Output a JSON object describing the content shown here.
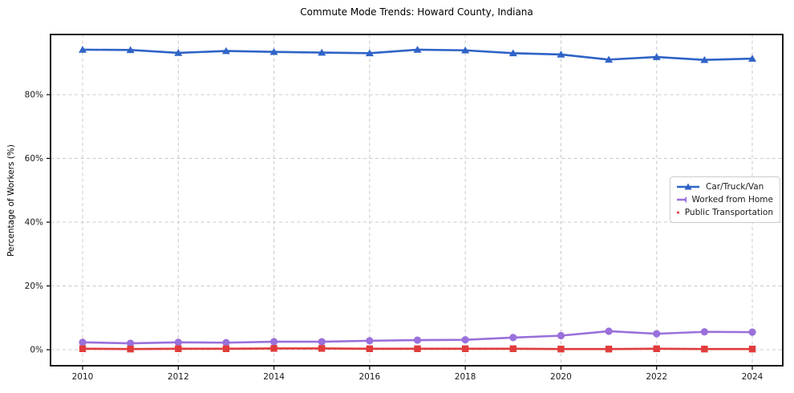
{
  "chart_data": {
    "type": "line",
    "title": "Commute Mode Trends: Howard County, Indiana",
    "xlabel": "",
    "ylabel": "Percentage of Workers (%)",
    "x": [
      2010,
      2011,
      2012,
      2013,
      2014,
      2015,
      2016,
      2017,
      2018,
      2019,
      2020,
      2021,
      2022,
      2023,
      2024
    ],
    "xtick_labels": [
      "2010",
      "2012",
      "2014",
      "2016",
      "2018",
      "2020",
      "2022",
      "2024"
    ],
    "xticks": [
      2010,
      2012,
      2014,
      2016,
      2018,
      2020,
      2022,
      2024
    ],
    "yticks": [
      0,
      20,
      40,
      60,
      80
    ],
    "ytick_labels": [
      "0%",
      "20%",
      "40%",
      "60%",
      "80%"
    ],
    "ylim": [
      -5,
      99
    ],
    "xlim": [
      2009.33,
      2024.64
    ],
    "grid": true,
    "grid_style": "dashed",
    "grid_color": "#c8c8c8",
    "legend_position": "center right",
    "series": [
      {
        "name": "Car/Truck/Van",
        "color": "#2f63c7",
        "marker": "triangle-up",
        "values": [
          94.1,
          94.0,
          93.1,
          93.7,
          93.4,
          93.2,
          93.0,
          94.1,
          93.9,
          93.0,
          92.6,
          91.0,
          91.8,
          90.9,
          91.3
        ]
      },
      {
        "name": "Worked from Home",
        "color": "#9a70db",
        "marker": "circle",
        "values": [
          2.3,
          2.0,
          2.3,
          2.2,
          2.5,
          2.5,
          2.8,
          3.0,
          3.1,
          3.8,
          4.4,
          5.8,
          5.0,
          5.6,
          5.5
        ]
      },
      {
        "name": "Public Transportation",
        "color": "#e13c3c",
        "marker": "square",
        "values": [
          0.3,
          0.2,
          0.3,
          0.3,
          0.4,
          0.4,
          0.3,
          0.3,
          0.3,
          0.3,
          0.2,
          0.2,
          0.3,
          0.2,
          0.2
        ]
      }
    ]
  }
}
